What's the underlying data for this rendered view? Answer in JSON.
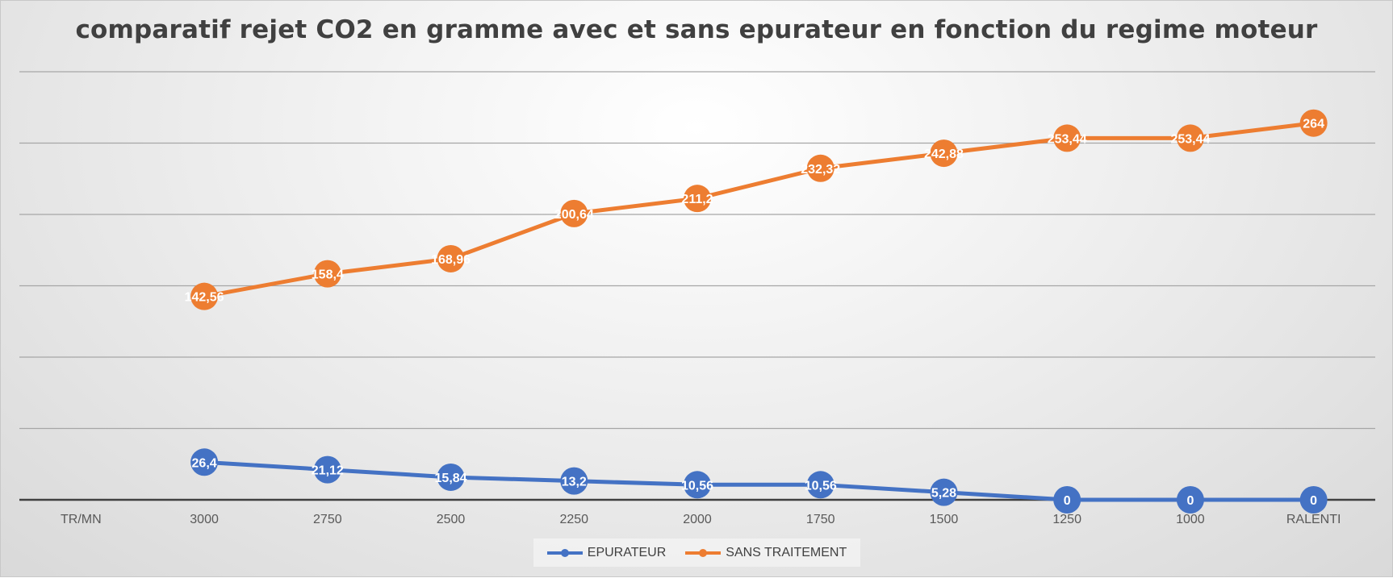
{
  "chart_data": {
    "type": "line",
    "title": "comparatif rejet CO2 en gramme avec et sans epurateur en fonction du regime moteur",
    "categories": [
      "TR/MN",
      "3000",
      "2750",
      "2500",
      "2250",
      "2000",
      "1750",
      "1500",
      "1250",
      "1000",
      "RALENTI"
    ],
    "series": [
      {
        "name": "EPURATEUR",
        "color": "#4472c4",
        "values": [
          null,
          26.4,
          21.12,
          15.84,
          13.2,
          10.56,
          10.56,
          5.28,
          0,
          0,
          0
        ],
        "labels": [
          null,
          "26,4",
          "21,12",
          "15,84",
          "13,2",
          "10,56",
          "10,56",
          "5,28",
          "0",
          "0",
          "0"
        ]
      },
      {
        "name": "SANS TRAITEMENT",
        "color": "#ed7d31",
        "values": [
          null,
          142.56,
          158.4,
          168.96,
          200.64,
          211.2,
          232.32,
          242.88,
          253.44,
          253.44,
          264
        ],
        "labels": [
          null,
          "142,56",
          "158,4",
          "168,96",
          "200,64",
          "211,2",
          "232,32",
          "242,88",
          "253,44",
          "253,44",
          "264"
        ]
      }
    ],
    "ylim": [
      0,
      300
    ],
    "y_gridlines": [
      50,
      100,
      150,
      200,
      250,
      300
    ],
    "grid": true,
    "y_tick_labels_shown": false,
    "legend_position": "bottom"
  }
}
